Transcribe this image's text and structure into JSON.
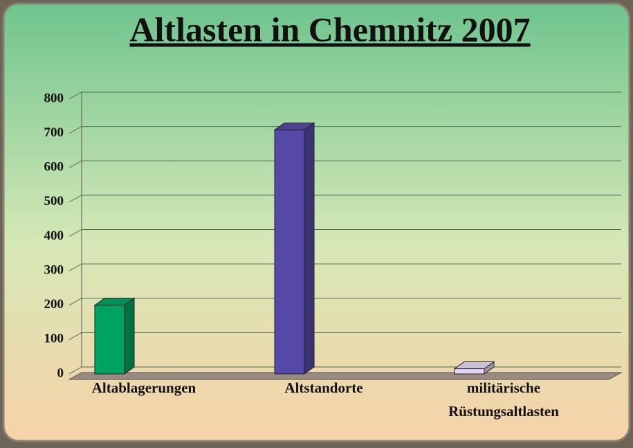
{
  "chart_data": {
    "type": "bar3d",
    "title": "Altlasten in Chemnitz 2007",
    "categories": [
      "Altablagerungen",
      "Altstandorte",
      "militärische Rüstungsaltlasten"
    ],
    "values": [
      200,
      710,
      15
    ],
    "colors": [
      "#00a262",
      "#5548a6",
      "#e2d4f2"
    ],
    "ylim": [
      0,
      800
    ],
    "yticks": [
      0,
      100,
      200,
      300,
      400,
      500,
      600,
      700,
      800
    ],
    "grid": true
  }
}
